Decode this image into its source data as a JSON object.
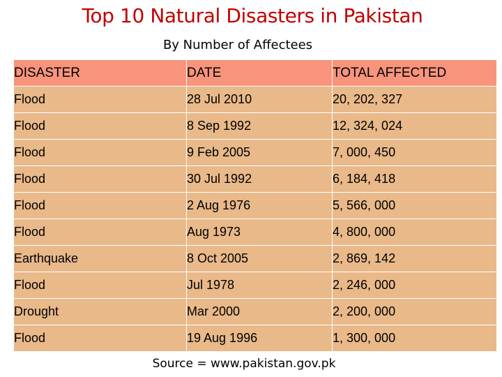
{
  "title": "Top 10 Natural Disasters in Pakistan",
  "subtitle": "By Number of Affectees",
  "table": {
    "headers": {
      "disaster": "DISASTER",
      "date": "DATE",
      "total": "TOTAL AFFECTED"
    },
    "rows": [
      {
        "disaster": "Flood",
        "date": "28 Jul 2010",
        "total": "20, 202, 327"
      },
      {
        "disaster": "Flood",
        "date": "8 Sep 1992",
        "total": "12, 324, 024"
      },
      {
        "disaster": "Flood",
        "date": "9 Feb 2005",
        "total": "7, 000, 450"
      },
      {
        "disaster": "Flood",
        "date": "30 Jul 1992",
        "total": "6, 184, 418"
      },
      {
        "disaster": "Flood",
        "date": "2 Aug 1976",
        "total": "5, 566, 000"
      },
      {
        "disaster": "Flood",
        "date": "Aug 1973",
        "total": "4, 800, 000"
      },
      {
        "disaster": "Earthquake",
        "date": "8 Oct 2005",
        "total": "2, 869, 142"
      },
      {
        "disaster": "Flood",
        "date": "Jul 1978",
        "total": "2, 246, 000"
      },
      {
        "disaster": "Drought",
        "date": "Mar 2000",
        "total": "2, 200, 000"
      },
      {
        "disaster": "Flood",
        "date": "19 Aug 1996",
        "total": "1, 300, 000"
      }
    ]
  },
  "source": "Source = www.pakistan.gov.pk",
  "colors": {
    "title": "#c00000",
    "header_bg": "#f8947c",
    "row_bg": "#e9b98a"
  }
}
